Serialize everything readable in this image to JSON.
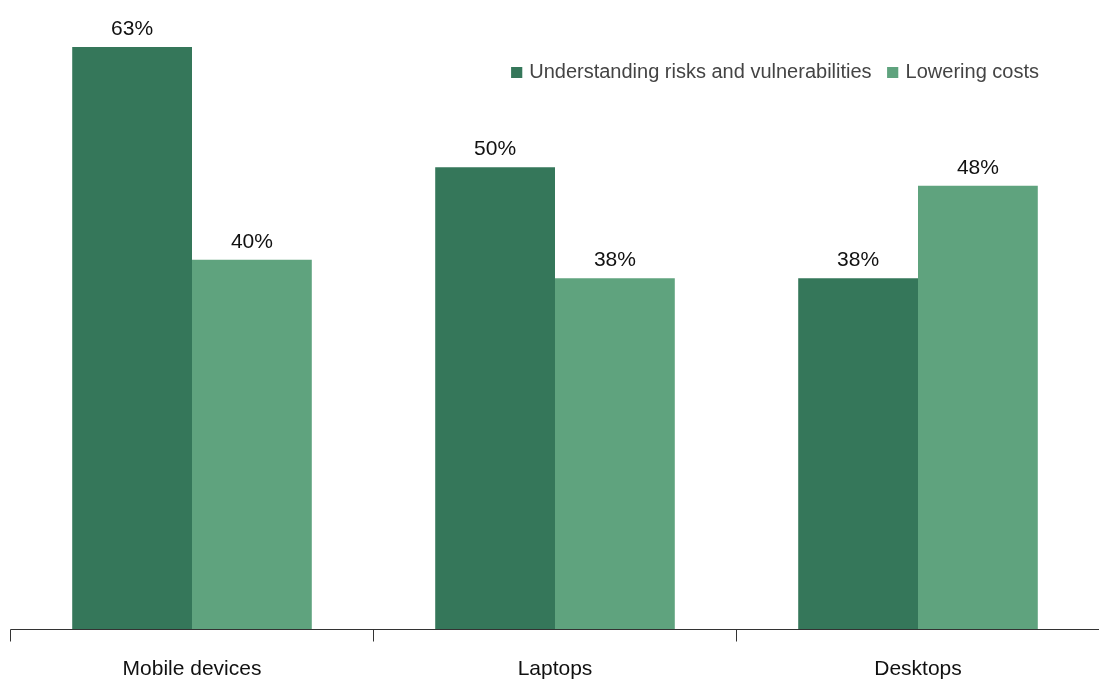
{
  "chart_data": {
    "type": "bar",
    "categories": [
      "Mobile devices",
      "Laptops",
      "Desktops"
    ],
    "series": [
      {
        "name": "Understanding risks and vulnerabilities",
        "color": "#35775a",
        "values": [
          63,
          50,
          38
        ],
        "value_labels": [
          "63%",
          "50%",
          "38%"
        ]
      },
      {
        "name": "Lowering costs",
        "color": "#5fa37e",
        "values": [
          40,
          38,
          48
        ],
        "value_labels": [
          "40%",
          "38%",
          "48%"
        ]
      }
    ],
    "legend": "top right",
    "grid": false
  }
}
